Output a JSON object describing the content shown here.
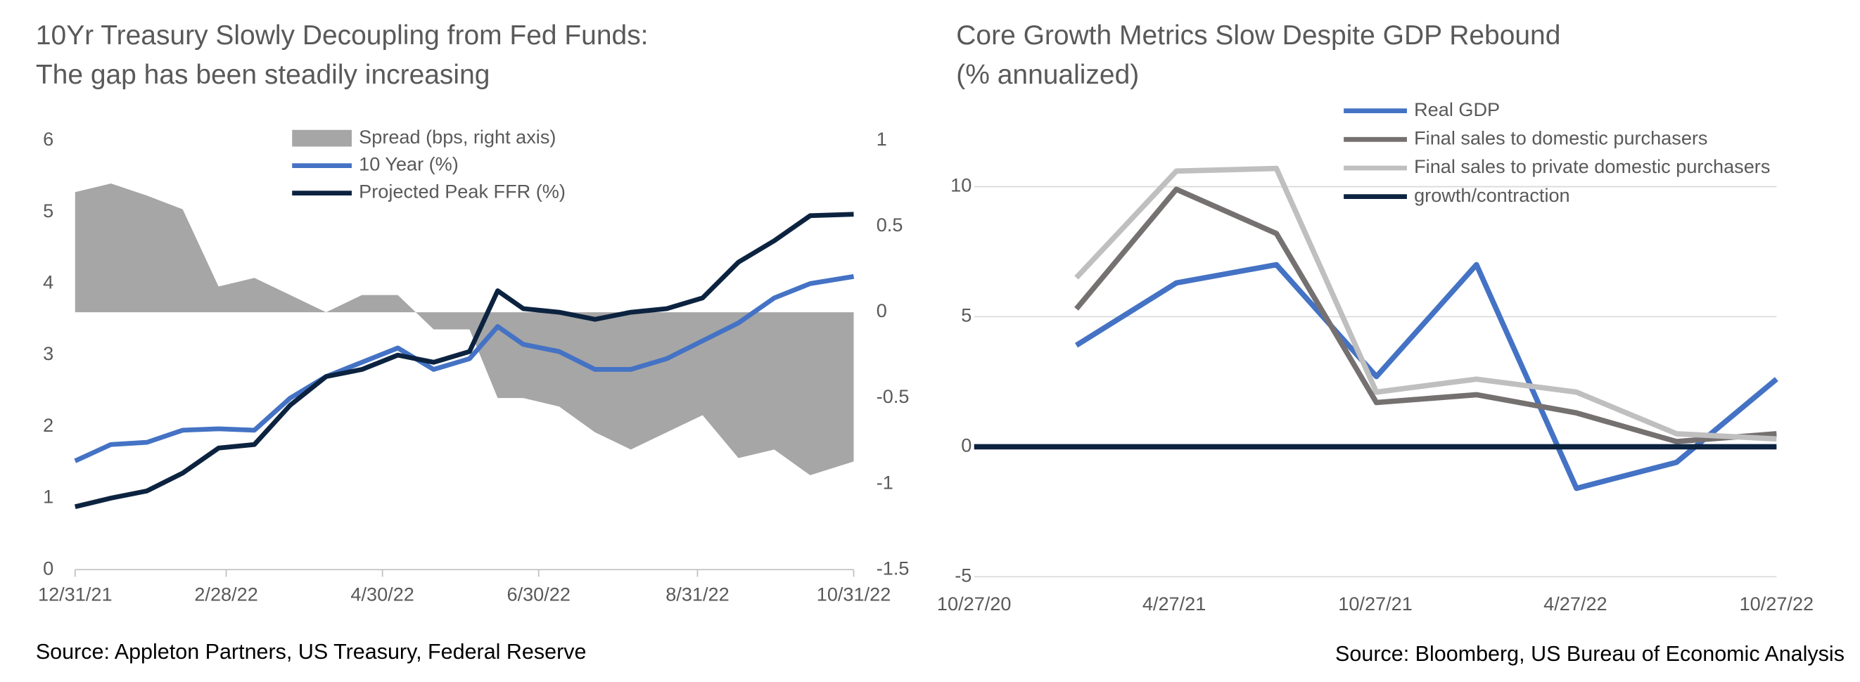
{
  "chart_data": [
    {
      "type": "line",
      "title": "10Yr Treasury Slowly Decoupling from Fed Funds:",
      "subtitle": "The gap has been steadily increasing",
      "source": "Source: Appleton Partners, US Treasury, Federal Reserve",
      "x": [
        "2021-12-31",
        "2022-01-14",
        "2022-01-28",
        "2022-02-11",
        "2022-02-25",
        "2022-03-11",
        "2022-03-25",
        "2022-04-08",
        "2022-04-22",
        "2022-05-06",
        "2022-05-20",
        "2022-06-03",
        "2022-06-14",
        "2022-06-24",
        "2022-07-08",
        "2022-07-22",
        "2022-08-05",
        "2022-08-19",
        "2022-09-02",
        "2022-09-16",
        "2022-09-30",
        "2022-10-14",
        "2022-10-31"
      ],
      "series": [
        {
          "name": "Spread (bps, right axis)",
          "color": "#a6a6a6",
          "style": "area",
          "axis": "y2",
          "values": [
            0.7,
            0.75,
            0.68,
            0.6,
            0.15,
            0.2,
            0.1,
            0.0,
            0.1,
            0.1,
            -0.1,
            -0.1,
            -0.5,
            -0.5,
            -0.55,
            -0.7,
            -0.8,
            -0.7,
            -0.6,
            -0.85,
            -0.8,
            -0.95,
            -0.87
          ]
        },
        {
          "name": "10 Year (%)",
          "color": "#4472c4",
          "values": [
            1.52,
            1.75,
            1.78,
            1.95,
            1.97,
            1.95,
            2.4,
            2.7,
            2.9,
            3.1,
            2.8,
            2.95,
            3.4,
            3.15,
            3.05,
            2.8,
            2.8,
            2.95,
            3.2,
            3.45,
            3.8,
            4.0,
            4.1
          ]
        },
        {
          "name": "Projected Peak FFR (%)",
          "color": "#0c2340",
          "values": [
            0.88,
            1.0,
            1.1,
            1.35,
            1.7,
            1.75,
            2.3,
            2.7,
            2.8,
            3.0,
            2.9,
            3.05,
            3.9,
            3.65,
            3.6,
            3.5,
            3.6,
            3.65,
            3.8,
            4.3,
            4.6,
            4.95,
            4.97
          ]
        }
      ],
      "ylim": [
        0,
        6
      ],
      "yticks": [
        0,
        1,
        2,
        3,
        4,
        5,
        6
      ],
      "y2lim": [
        -1.5,
        1
      ],
      "y2ticks": [
        -1.5,
        -1,
        -0.5,
        0,
        0.5,
        1
      ],
      "xlim": [
        "2021-12-31",
        "2022-10-31"
      ],
      "xticks": [
        {
          "value": "2021-12-31",
          "label": "12/31/21"
        },
        {
          "value": "2022-02-28",
          "label": "2/28/22"
        },
        {
          "value": "2022-04-30",
          "label": "4/30/22"
        },
        {
          "value": "2022-06-30",
          "label": "6/30/22"
        },
        {
          "value": "2022-08-31",
          "label": "8/31/22"
        },
        {
          "value": "2022-10-31",
          "label": "10/31/22"
        }
      ],
      "grid": false
    },
    {
      "type": "line",
      "title": "Core Growth Metrics Slow Despite GDP Rebound",
      "subtitle": "(% annualized)",
      "source": "Source: Bloomberg, US Bureau of Economic Analysis",
      "x": [
        "2021-01-28",
        "2021-04-29",
        "2021-07-29",
        "2021-10-28",
        "2022-01-27",
        "2022-04-28",
        "2022-07-28",
        "2022-10-27"
      ],
      "series": [
        {
          "name": "Real GDP",
          "color": "#4472c4",
          "values": [
            3.9,
            6.3,
            7.0,
            2.7,
            7.0,
            -1.6,
            -0.6,
            2.6
          ]
        },
        {
          "name": "Final sales to domestic purchasers",
          "color": "#767171",
          "values": [
            5.3,
            9.9,
            8.2,
            1.7,
            2.0,
            1.3,
            0.2,
            0.5
          ]
        },
        {
          "name": "Final sales to private domestic purchasers",
          "color": "#bfbfbf",
          "values": [
            6.5,
            10.6,
            10.7,
            2.1,
            2.6,
            2.1,
            0.5,
            0.3
          ]
        },
        {
          "name": "growth/contraction",
          "color": "#0c2340",
          "x": [
            "2020-10-27",
            "2022-10-27"
          ],
          "values": [
            0,
            0
          ]
        }
      ],
      "ylim": [
        -5,
        12
      ],
      "yticks": [
        -5,
        0,
        5,
        10
      ],
      "xlim": [
        "2020-10-27",
        "2022-10-27"
      ],
      "xticks": [
        {
          "value": "2020-10-27",
          "label": "10/27/20"
        },
        {
          "value": "2021-04-27",
          "label": "4/27/21"
        },
        {
          "value": "2021-10-27",
          "label": "10/27/21"
        },
        {
          "value": "2022-04-27",
          "label": "4/27/22"
        },
        {
          "value": "2022-10-27",
          "label": "10/27/22"
        }
      ],
      "grid": true
    }
  ]
}
